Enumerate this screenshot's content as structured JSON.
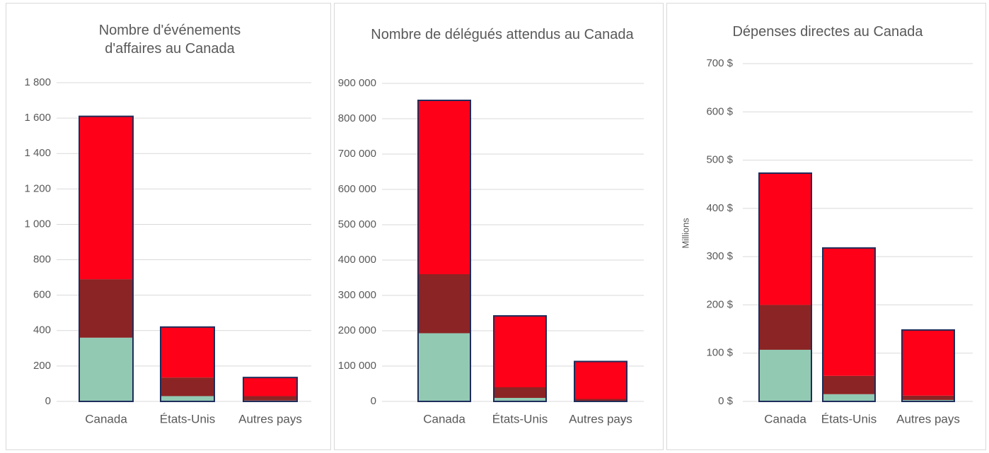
{
  "chart_data": [
    {
      "type": "stacked_bar",
      "title": "Nombre d'événements d'affaires au Canada",
      "categories": [
        "Canada",
        "États-Unis",
        "Autres pays"
      ],
      "series": [
        {
          "color": "#92c9b3",
          "values": [
            360,
            30,
            5
          ]
        },
        {
          "color": "#8b2424",
          "values": [
            330,
            105,
            25
          ]
        },
        {
          "color": "#ff0019",
          "values": [
            920,
            285,
            105
          ]
        }
      ],
      "outline_color": "#1f2d5a",
      "ylim": [
        0,
        1800
      ],
      "yticks": [
        0,
        200,
        400,
        600,
        800,
        {
          "value": 1000,
          "label": "1 000"
        },
        {
          "value": 1200,
          "label": "1 200"
        },
        {
          "value": 1400,
          "label": "1 400"
        },
        {
          "value": 1600,
          "label": "1 600"
        },
        {
          "value": 1800,
          "label": "1 800"
        }
      ],
      "grid": true
    },
    {
      "type": "stacked_bar",
      "title": "Nombre de délégués attendus au Canada",
      "categories": [
        "Canada",
        "États-Unis",
        "Autres pays"
      ],
      "series": [
        {
          "color": "#92c9b3",
          "values": [
            193000,
            10000,
            2000
          ]
        },
        {
          "color": "#8b2424",
          "values": [
            167000,
            30000,
            5000
          ]
        },
        {
          "color": "#ff0019",
          "values": [
            492000,
            202000,
            106000
          ]
        }
      ],
      "outline_color": "#1f2d5a",
      "ylim": [
        0,
        900000
      ],
      "yticks": [
        0,
        {
          "value": 100000,
          "label": "100 000"
        },
        {
          "value": 200000,
          "label": "200 000"
        },
        {
          "value": 300000,
          "label": "300 000"
        },
        {
          "value": 400000,
          "label": "400 000"
        },
        {
          "value": 500000,
          "label": "500 000"
        },
        {
          "value": 600000,
          "label": "600 000"
        },
        {
          "value": 700000,
          "label": "700 000"
        },
        {
          "value": 800000,
          "label": "800 000"
        },
        {
          "value": 900000,
          "label": "900 000"
        }
      ],
      "grid": true
    },
    {
      "type": "stacked_bar",
      "title": "Dépenses directes au Canada",
      "y_label": "Millions",
      "categories": [
        "Canada",
        "États-Unis",
        "Autres pays"
      ],
      "series": [
        {
          "color": "#92c9b3",
          "values": [
            107,
            15,
            3
          ]
        },
        {
          "color": "#8b2424",
          "values": [
            93,
            38,
            9
          ]
        },
        {
          "color": "#ff0019",
          "values": [
            273,
            265,
            136
          ]
        }
      ],
      "outline_color": "#1f2d5a",
      "ylim": [
        0,
        700
      ],
      "yticks": [
        {
          "value": 0,
          "label": "0 $"
        },
        {
          "value": 100,
          "label": "100 $"
        },
        {
          "value": 200,
          "label": "200 $"
        },
        {
          "value": 300,
          "label": "300 $"
        },
        {
          "value": 400,
          "label": "400 $"
        },
        {
          "value": 500,
          "label": "500 $"
        },
        {
          "value": 600,
          "label": "600 $"
        },
        {
          "value": 700,
          "label": "700 $"
        }
      ],
      "grid": true
    }
  ]
}
